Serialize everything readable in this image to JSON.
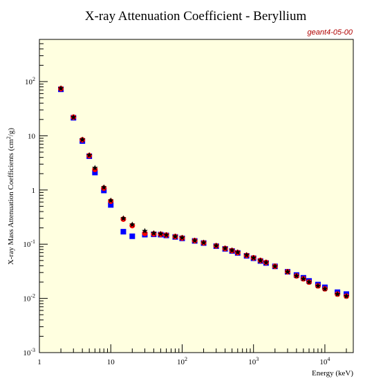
{
  "colors": {
    "plot_background": "#ffffe0",
    "tag": "#b00000",
    "series_square": "#0000ff",
    "series_circle": "#ff0000",
    "series_star": "#000000"
  },
  "chart_data": {
    "type": "scatter",
    "title": "X-ray Attenuation Coefficient - Beryllium",
    "tag": "geant4-05-00",
    "xlabel": "Energy (keV)",
    "ylabel_main": "X-ray Mass Attenuation Coefficients (cm",
    "ylabel_sup": "2",
    "ylabel_tail": "/g)",
    "x_scale": "log",
    "y_scale": "log",
    "xlim": [
      1,
      25000
    ],
    "ylim": [
      0.001,
      600
    ],
    "grid": false,
    "x_ticks": [
      {
        "value": 1,
        "base": "1",
        "exp": ""
      },
      {
        "value": 10,
        "base": "10",
        "exp": ""
      },
      {
        "value": 100,
        "base": "10",
        "exp": "2"
      },
      {
        "value": 1000,
        "base": "10",
        "exp": "3"
      },
      {
        "value": 10000,
        "base": "10",
        "exp": "4"
      }
    ],
    "y_ticks": [
      {
        "value": 0.001,
        "base": "10",
        "exp": "-3"
      },
      {
        "value": 0.01,
        "base": "10",
        "exp": "-2"
      },
      {
        "value": 0.1,
        "base": "10",
        "exp": "-1"
      },
      {
        "value": 1,
        "base": "1",
        "exp": ""
      },
      {
        "value": 10,
        "base": "10",
        "exp": ""
      },
      {
        "value": 100,
        "base": "10",
        "exp": "2"
      }
    ],
    "series": [
      {
        "marker": "square",
        "x": [
          2,
          3,
          4,
          5,
          6,
          8,
          10,
          15,
          20,
          30,
          40,
          50,
          60,
          80,
          100,
          150,
          200,
          300,
          400,
          500,
          600,
          800,
          1000,
          1250,
          1500,
          2000,
          3000,
          4000,
          5000,
          6000,
          8000,
          10000,
          15000,
          20000
        ],
        "y": [
          72,
          21.5,
          8.0,
          4.2,
          2.1,
          0.98,
          0.53,
          0.17,
          0.14,
          0.15,
          0.152,
          0.15,
          0.145,
          0.136,
          0.128,
          0.115,
          0.105,
          0.092,
          0.082,
          0.075,
          0.069,
          0.061,
          0.055,
          0.049,
          0.045,
          0.039,
          0.031,
          0.027,
          0.024,
          0.021,
          0.018,
          0.016,
          0.013,
          0.012
        ]
      },
      {
        "marker": "circle",
        "x": [
          2,
          3,
          4,
          5,
          6,
          8,
          10,
          15,
          20,
          30,
          40,
          50,
          60,
          80,
          100,
          150,
          200,
          300,
          400,
          500,
          600,
          800,
          1000,
          1250,
          1500,
          2000,
          3000,
          4000,
          5000,
          6000,
          8000,
          10000,
          15000,
          20000
        ],
        "y": [
          74,
          22,
          8.4,
          4.3,
          2.4,
          1.08,
          0.62,
          0.29,
          0.22,
          0.158,
          0.155,
          0.152,
          0.147,
          0.138,
          0.13,
          0.116,
          0.106,
          0.093,
          0.083,
          0.076,
          0.07,
          0.062,
          0.056,
          0.05,
          0.046,
          0.039,
          0.031,
          0.026,
          0.023,
          0.02,
          0.017,
          0.015,
          0.012,
          0.011
        ]
      },
      {
        "marker": "star",
        "x": [
          2,
          3,
          4,
          5,
          6,
          8,
          10,
          15,
          20,
          30,
          40,
          50,
          60,
          80,
          100,
          150,
          200,
          300,
          400,
          500,
          600,
          800,
          1000,
          1250,
          1500,
          2000,
          3000,
          4000,
          5000,
          6000,
          8000,
          10000,
          15000,
          20000
        ],
        "y": [
          75,
          22,
          8.5,
          4.4,
          2.55,
          1.12,
          0.64,
          0.3,
          0.23,
          0.175,
          0.16,
          0.155,
          0.148,
          0.139,
          0.132,
          0.117,
          0.107,
          0.094,
          0.084,
          0.077,
          0.071,
          0.063,
          0.056,
          0.05,
          0.046,
          0.039,
          0.031,
          0.026,
          0.023,
          0.02,
          0.017,
          0.015,
          0.012,
          0.011
        ]
      }
    ]
  }
}
